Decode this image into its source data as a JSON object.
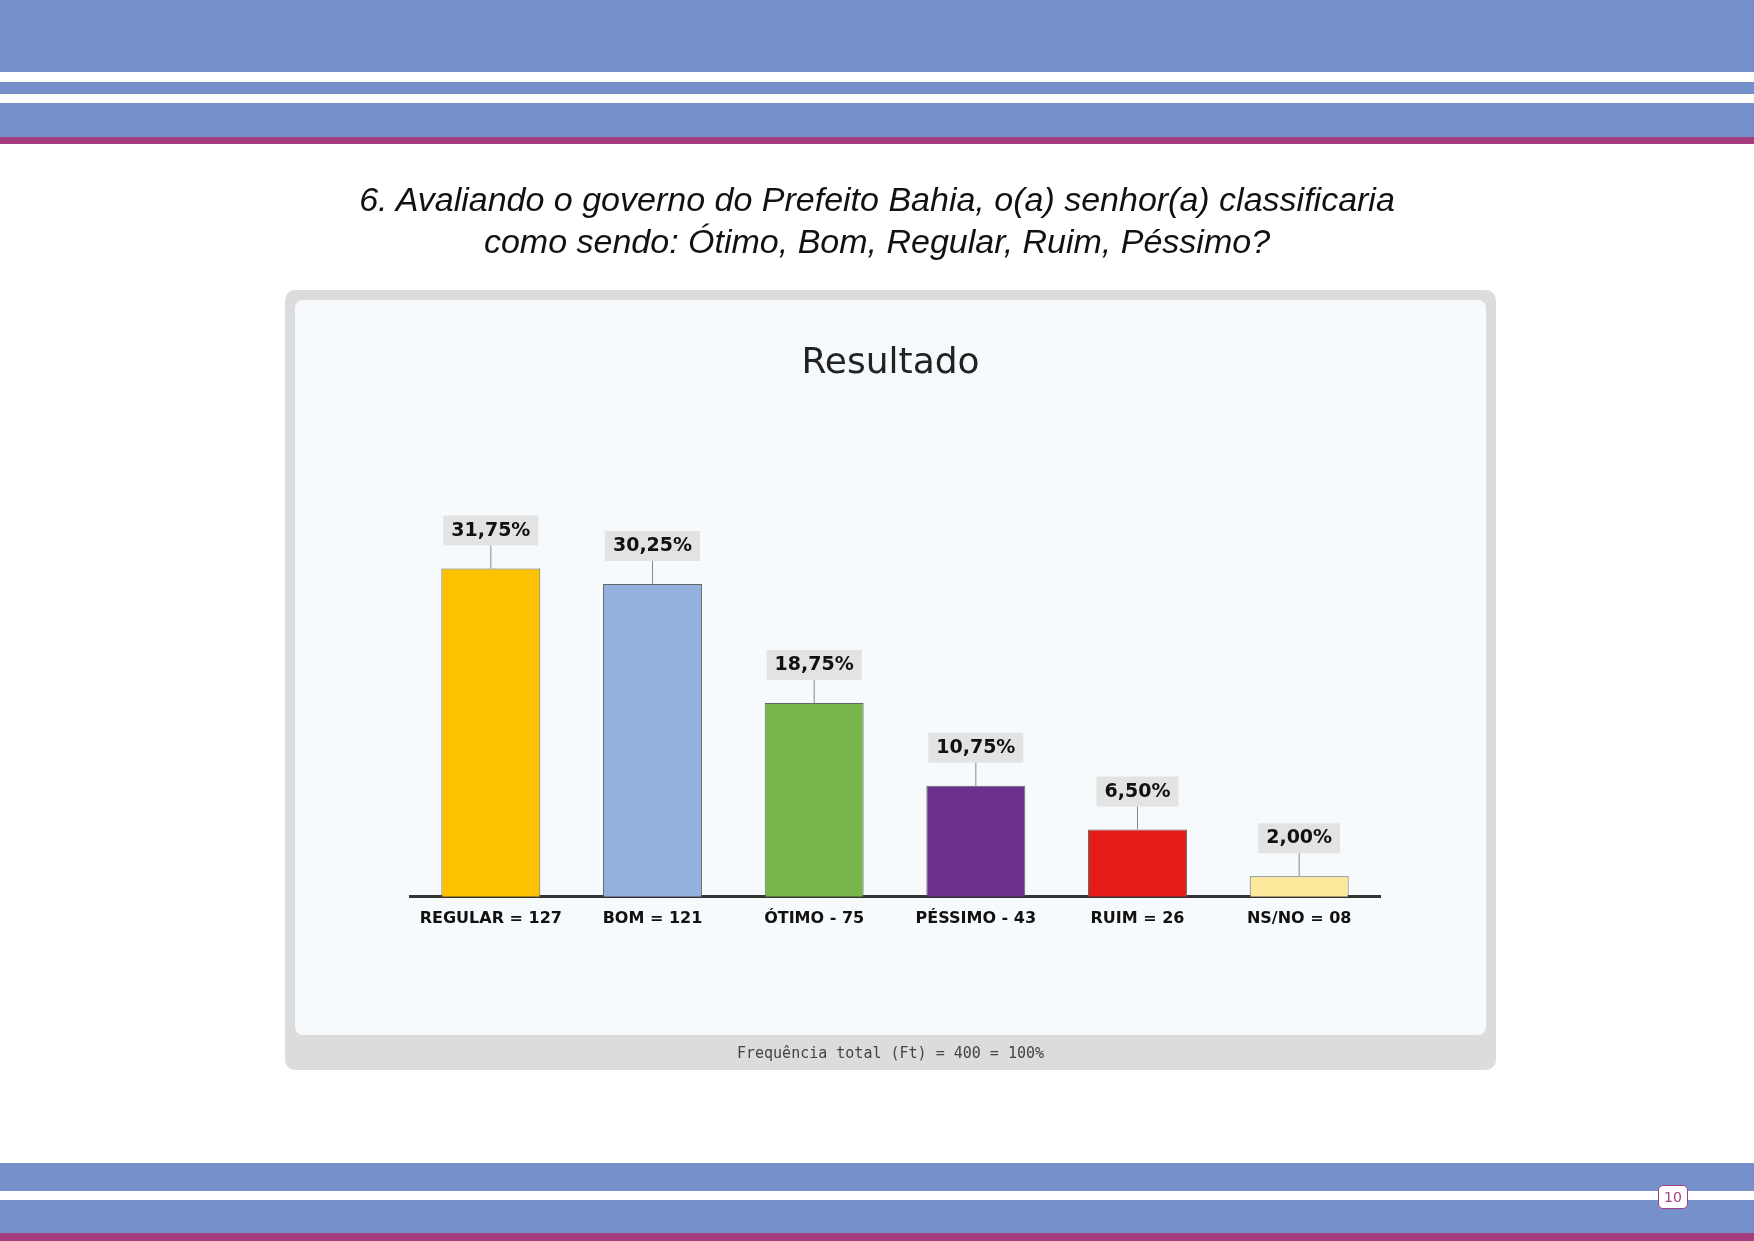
{
  "chart_data": {
    "type": "bar",
    "title": "6. Avaliando o governo do Prefeito Bahia, o(a) senhor(a) classificaria como sendo: Ótimo, Bom, Regular, Ruim, Péssimo?",
    "subtitle": "Resultado",
    "categories": [
      "REGULAR = 127",
      "BOM = 121",
      "ÓTIMO - 75",
      "PÉSSIMO - 43",
      "RUIM = 26",
      "NS/NO = 08"
    ],
    "values": [
      31.75,
      30.25,
      18.75,
      10.75,
      6.5,
      2.0
    ],
    "value_labels": [
      "31,75%",
      "30,25%",
      "18,75%",
      "10,75%",
      "6,50%",
      "2,00%"
    ],
    "colors": [
      "#fcc200",
      "#94b0de",
      "#78b54b",
      "#6b308b",
      "#e31c17",
      "#fde99b"
    ],
    "grid": false,
    "legend": false,
    "annotations": [
      "Frequência total (Ft) = 400 = 100%",
      "10"
    ]
  }
}
